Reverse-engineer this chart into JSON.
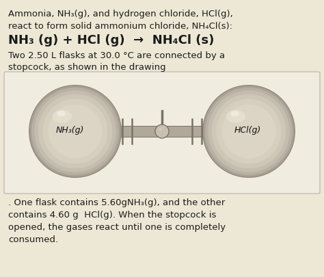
{
  "bg_color": "#ede8d5",
  "diagram_bg": "#f0ede0",
  "text_color": "#1a1a1a",
  "flask_shadow": "#9a9488",
  "flask_mid": "#b8b0a0",
  "flask_light": "#d0c9b8",
  "flask_lighter": "#ddd6c5",
  "flask_lightest": "#e8e2d2",
  "tube_color": "#b0a898",
  "tube_edge": "#7a7268",
  "stopcock_fill": "#c8c0b0",
  "stopcock_edge": "#7a7268",
  "line1": "Ammonia, NH₃(g), and hydrogen chloride, HCl(g),",
  "line2": "react to form solid ammonium chloride, NH₄Cl(s):",
  "line3": "NH₃ (g) + HCl (g)  →  NH₄Cl (s)",
  "line4": "Two 2.50 L flasks at 30.0 °C are connected by a",
  "line5": "stopcock, as shown in the drawing",
  "flask_left_label": "NH₃(g)",
  "flask_right_label": "HCl(g)",
  "bline1": ". One flask contains 5.60gNH₃(g), and the other",
  "bline2": "contains 4.60 g  HCl(g). When the stopcock is",
  "bline3": "opened, the gases react until one is completely",
  "bline4": "consumed."
}
